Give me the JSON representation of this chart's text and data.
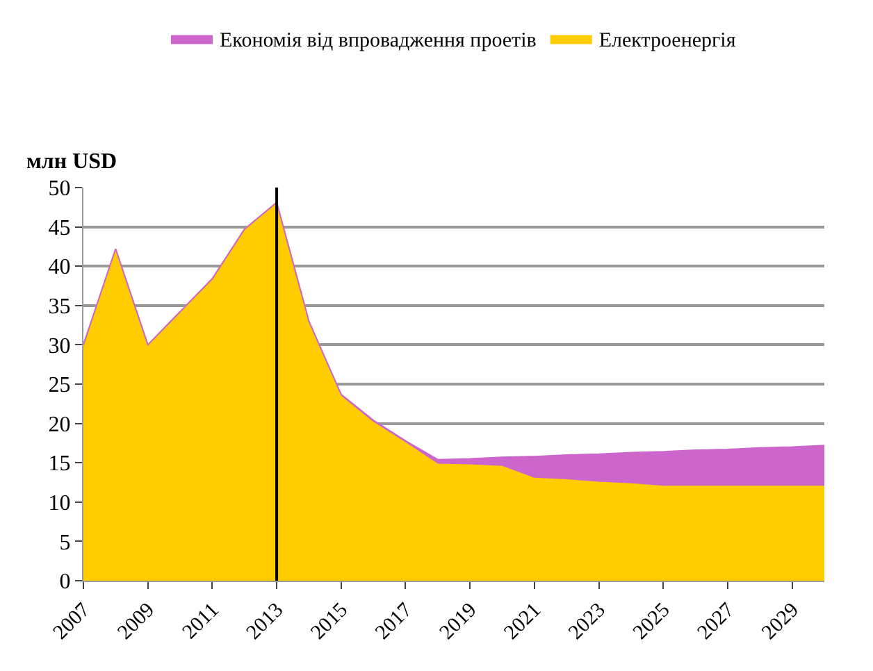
{
  "chart_data": {
    "type": "area",
    "stacked": true,
    "ylabel": "млн USD",
    "x": [
      2007,
      2008,
      2009,
      2010,
      2011,
      2012,
      2013,
      2014,
      2015,
      2016,
      2017,
      2018,
      2019,
      2020,
      2021,
      2022,
      2023,
      2024,
      2025,
      2026,
      2027,
      2028,
      2029,
      2030
    ],
    "series": [
      {
        "name": "Електроенергія",
        "color": "#ffcc00",
        "values": [
          30,
          42.2,
          30,
          34.2,
          38.4,
          44.7,
          48.1,
          33,
          23.4,
          20.1,
          17.5,
          14.8,
          14.7,
          14.5,
          13,
          12.8,
          12.5,
          12.3,
          12,
          12,
          12,
          12,
          12,
          12
        ]
      },
      {
        "name": "Економія від впровадження проетів",
        "color": "#cc66cc",
        "values": [
          0,
          0,
          0,
          0,
          0,
          0,
          0,
          0,
          0.3,
          0.3,
          0.3,
          0.6,
          0.8,
          1.2,
          2.8,
          3.2,
          3.6,
          4,
          4.4,
          4.6,
          4.7,
          4.9,
          5,
          5.2
        ]
      }
    ],
    "xlim": [
      2007,
      2030
    ],
    "xticks": [
      2007,
      2009,
      2011,
      2013,
      2015,
      2017,
      2019,
      2021,
      2023,
      2025,
      2027,
      2029
    ],
    "ylim": [
      0,
      50
    ],
    "yticks": [
      0,
      5,
      10,
      15,
      20,
      25,
      30,
      35,
      40,
      45,
      50
    ],
    "ref_lines": [
      {
        "axis": "x",
        "value": 2013,
        "color": "#000000"
      }
    ],
    "grid": "y",
    "legend": "top"
  }
}
